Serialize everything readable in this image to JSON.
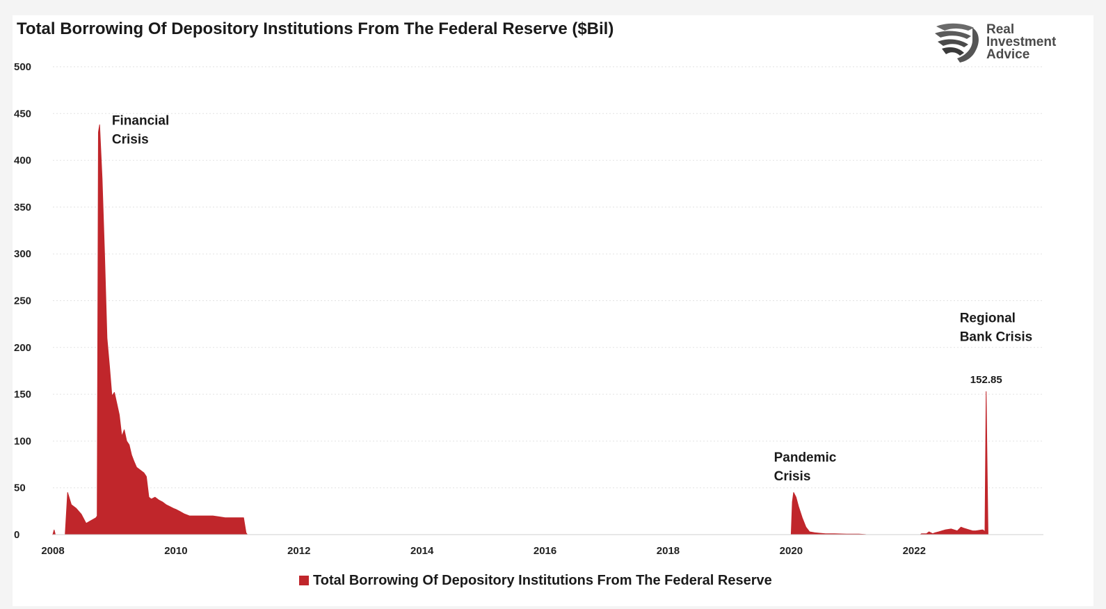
{
  "title": "Total Borrowing Of Depository Institutions From The Federal Reserve ($Bil)",
  "logo": {
    "lines": [
      "Real",
      "Investment",
      "Advice"
    ],
    "icon": "eagle-head-icon"
  },
  "colors": {
    "series": "#c0262b",
    "grid": "#e2e2e2",
    "logo": "#4a4a4a"
  },
  "legend": {
    "label": "Total Borrowing Of Depository Institutions From The Federal Reserve"
  },
  "chart_data": {
    "type": "area",
    "title": "Total Borrowing Of Depository Institutions From The Federal Reserve ($Bil)",
    "xlabel": "",
    "ylabel": "",
    "xlim": [
      2008,
      2024.1
    ],
    "ylim": [
      0,
      500
    ],
    "xticks": [
      "2008",
      "2010",
      "2012",
      "2014",
      "2016",
      "2018",
      "2020",
      "2022"
    ],
    "yticks": [
      "0",
      "50",
      "100",
      "150",
      "200",
      "250",
      "300",
      "350",
      "400",
      "450",
      "500"
    ],
    "grid": true,
    "legend_position": "bottom",
    "series": [
      {
        "name": "Total Borrowing Of Depository Institutions From The Federal Reserve",
        "x": [
          2008.0,
          2008.02,
          2008.04,
          2008.2,
          2008.24,
          2008.3,
          2008.38,
          2008.46,
          2008.54,
          2008.62,
          2008.7,
          2008.72,
          2008.74,
          2008.76,
          2008.8,
          2008.84,
          2008.88,
          2008.92,
          2008.96,
          2009.0,
          2009.04,
          2009.08,
          2009.12,
          2009.16,
          2009.2,
          2009.24,
          2009.28,
          2009.32,
          2009.36,
          2009.4,
          2009.44,
          2009.48,
          2009.52,
          2009.56,
          2009.6,
          2009.66,
          2009.72,
          2009.78,
          2009.84,
          2009.9,
          2009.96,
          2010.0,
          2010.06,
          2010.14,
          2010.22,
          2010.3,
          2010.4,
          2010.5,
          2010.6,
          2010.7,
          2010.8,
          2010.9,
          2011.0,
          2011.1,
          2011.14,
          2011.16,
          2020.0,
          2020.02,
          2020.04,
          2020.08,
          2020.12,
          2020.18,
          2020.24,
          2020.3,
          2020.38,
          2020.46,
          2020.56,
          2020.7,
          2020.9,
          2021.1,
          2021.2,
          2021.22,
          2022.1,
          2022.12,
          2022.2,
          2022.24,
          2022.3,
          2022.34,
          2022.4,
          2022.45,
          2022.5,
          2022.6,
          2022.7,
          2022.76,
          2022.8,
          2022.9,
          2022.95,
          2023.0,
          2023.1,
          2023.12,
          2023.15,
          2023.17,
          2023.18,
          2023.2
        ],
        "y": [
          0,
          5,
          0,
          0,
          45,
          32,
          28,
          22,
          12,
          15,
          18,
          20,
          430,
          438,
          380,
          300,
          210,
          180,
          148,
          152,
          140,
          128,
          105,
          112,
          100,
          96,
          85,
          78,
          72,
          70,
          68,
          66,
          62,
          40,
          38,
          40,
          37,
          35,
          32,
          30,
          28,
          27,
          25,
          22,
          20,
          20,
          20,
          20,
          20,
          19,
          18,
          18,
          18,
          18,
          2,
          0,
          0,
          35,
          45,
          40,
          30,
          18,
          8,
          3,
          2,
          1.5,
          1,
          1,
          0.5,
          0.5,
          0.2,
          0,
          0,
          1,
          1,
          3,
          1,
          2,
          3,
          4,
          5,
          6,
          4,
          8,
          7,
          5,
          4,
          4,
          5,
          5,
          3,
          152.85,
          100,
          0
        ]
      }
    ],
    "annotations": [
      {
        "lines": [
          "Financial",
          "Crisis"
        ],
        "x": 2008.96,
        "y": 438
      },
      {
        "lines": [
          "Pandemic",
          "Crisis"
        ],
        "x": 2019.72,
        "y": 78
      },
      {
        "lines": [
          "Regional",
          "Bank Crisis"
        ],
        "x": 2022.74,
        "y": 227
      }
    ],
    "data_labels": [
      {
        "text": "152.85",
        "x": 2023.17,
        "y": 162
      }
    ]
  }
}
